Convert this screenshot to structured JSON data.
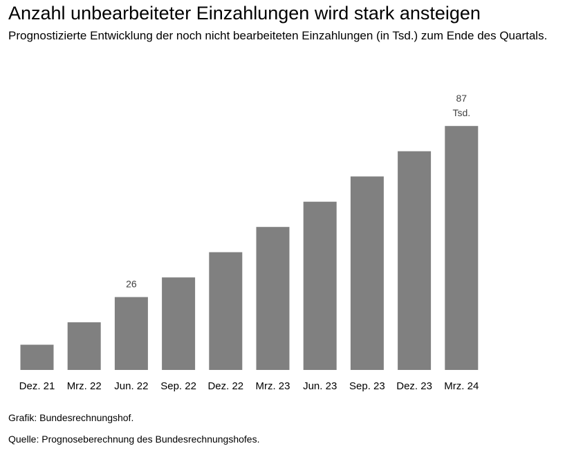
{
  "title": "Anzahl unbearbeiteter Einzahlungen wird stark ansteigen",
  "subtitle": "Prognostizierte Entwicklung der noch nicht bearbeiteten Einzahlungen (in Tsd.) zum Ende des Quartals.",
  "footer": {
    "credit": "Grafik: Bundesrechnungshof.",
    "source": "Quelle: Prognoseberechnung des Bundesrechnungshofes."
  },
  "chart_data": {
    "type": "bar",
    "title": "Anzahl unbearbeiteter Einzahlungen wird stark ansteigen",
    "subtitle": "Prognostizierte Entwicklung der noch nicht bearbeiteten Einzahlungen (in Tsd.) zum Ende des Quartals.",
    "xlabel": "",
    "ylabel": "",
    "categories": [
      "Dez. 21",
      "Mrz. 22",
      "Jun. 22",
      "Sep. 22",
      "Dez. 22",
      "Mrz. 23",
      "Jun. 23",
      "Sep. 23",
      "Dez. 23",
      "Mrz. 24"
    ],
    "values": [
      9,
      17,
      26,
      33,
      42,
      51,
      60,
      69,
      78,
      87
    ],
    "ylim": [
      0,
      90
    ],
    "grid": false,
    "bar_color": "#808080",
    "data_labels": [
      {
        "index": 2,
        "lines": [
          "26"
        ]
      },
      {
        "index": 9,
        "lines": [
          "87",
          "Tsd."
        ]
      }
    ]
  }
}
